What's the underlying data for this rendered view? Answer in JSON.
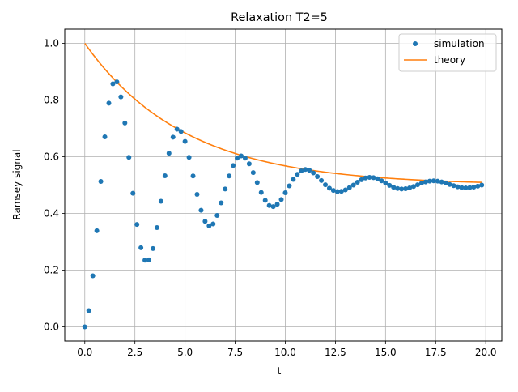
{
  "chart_data": {
    "type": "line",
    "title": "Relaxation T2=5",
    "xlabel": "t",
    "ylabel": "Ramsey signal",
    "xlim": [
      -1.0,
      20.8
    ],
    "ylim": [
      -0.05,
      1.05
    ],
    "xticks": [
      0.0,
      2.5,
      5.0,
      7.5,
      10.0,
      12.5,
      15.0,
      17.5,
      20.0
    ],
    "xtick_labels": [
      "0.0",
      "2.5",
      "5.0",
      "7.5",
      "10.0",
      "12.5",
      "15.0",
      "17.5",
      "20.0"
    ],
    "yticks": [
      0.0,
      0.2,
      0.4,
      0.6,
      0.8,
      1.0
    ],
    "ytick_labels": [
      "0.0",
      "0.2",
      "0.4",
      "0.6",
      "0.8",
      "1.0"
    ],
    "grid": true,
    "legend_position": "top-right",
    "series": [
      {
        "name": "simulation",
        "style": "markers",
        "color": "#1f77b4",
        "x": [
          0.0,
          0.2,
          0.4,
          0.6,
          0.8,
          1.0,
          1.2,
          1.4,
          1.6,
          1.8,
          2.0,
          2.2,
          2.4,
          2.6,
          2.8,
          3.0,
          3.2,
          3.4,
          3.6,
          3.8,
          4.0,
          4.2,
          4.4,
          4.6,
          4.8,
          5.0,
          5.2,
          5.4,
          5.6,
          5.8,
          6.0,
          6.2,
          6.4,
          6.6,
          6.8,
          7.0,
          7.2,
          7.4,
          7.6,
          7.8,
          8.0,
          8.2,
          8.4,
          8.6,
          8.8,
          9.0,
          9.2,
          9.4,
          9.6,
          9.8,
          10.0,
          10.2,
          10.4,
          10.6,
          10.8,
          11.0,
          11.2,
          11.4,
          11.6,
          11.8,
          12.0,
          12.2,
          12.4,
          12.6,
          12.8,
          13.0,
          13.2,
          13.4,
          13.6,
          13.8,
          14.0,
          14.2,
          14.4,
          14.6,
          14.8,
          15.0,
          15.2,
          15.4,
          15.6,
          15.8,
          16.0,
          16.2,
          16.4,
          16.6,
          16.8,
          17.0,
          17.2,
          17.4,
          17.6,
          17.8,
          18.0,
          18.2,
          18.4,
          18.6,
          18.8,
          19.0,
          19.2,
          19.4,
          19.6,
          19.8
        ],
        "y": [
          0.0,
          0.057,
          0.18,
          0.339,
          0.513,
          0.67,
          0.789,
          0.857,
          0.864,
          0.811,
          0.719,
          0.598,
          0.471,
          0.361,
          0.279,
          0.235,
          0.236,
          0.276,
          0.35,
          0.443,
          0.533,
          0.612,
          0.669,
          0.697,
          0.689,
          0.654,
          0.598,
          0.532,
          0.467,
          0.411,
          0.372,
          0.356,
          0.363,
          0.393,
          0.437,
          0.486,
          0.532,
          0.569,
          0.595,
          0.603,
          0.595,
          0.575,
          0.544,
          0.509,
          0.474,
          0.446,
          0.428,
          0.424,
          0.432,
          0.449,
          0.473,
          0.497,
          0.52,
          0.538,
          0.55,
          0.555,
          0.552,
          0.543,
          0.53,
          0.516,
          0.501,
          0.489,
          0.481,
          0.477,
          0.478,
          0.483,
          0.491,
          0.5,
          0.51,
          0.519,
          0.525,
          0.527,
          0.526,
          0.522,
          0.515,
          0.507,
          0.499,
          0.492,
          0.488,
          0.486,
          0.487,
          0.49,
          0.495,
          0.501,
          0.507,
          0.511,
          0.514,
          0.515,
          0.514,
          0.511,
          0.507,
          0.502,
          0.498,
          0.494,
          0.491,
          0.49,
          0.491,
          0.493,
          0.496,
          0.5
        ]
      },
      {
        "name": "theory",
        "style": "line",
        "color": "#ff7f0e",
        "formula": "0.5 + 0.5*exp(-t/5)",
        "x": [
          0.0,
          1.0,
          2.0,
          3.0,
          4.0,
          5.0,
          6.0,
          7.0,
          8.0,
          9.0,
          10.0,
          11.0,
          12.0,
          13.0,
          14.0,
          15.0,
          16.0,
          17.0,
          18.0,
          19.0,
          19.8
        ],
        "y": [
          1.0,
          0.909,
          0.835,
          0.774,
          0.725,
          0.684,
          0.651,
          0.623,
          0.601,
          0.583,
          0.568,
          0.555,
          0.545,
          0.537,
          0.53,
          0.525,
          0.52,
          0.517,
          0.514,
          0.511,
          0.51
        ]
      }
    ]
  }
}
